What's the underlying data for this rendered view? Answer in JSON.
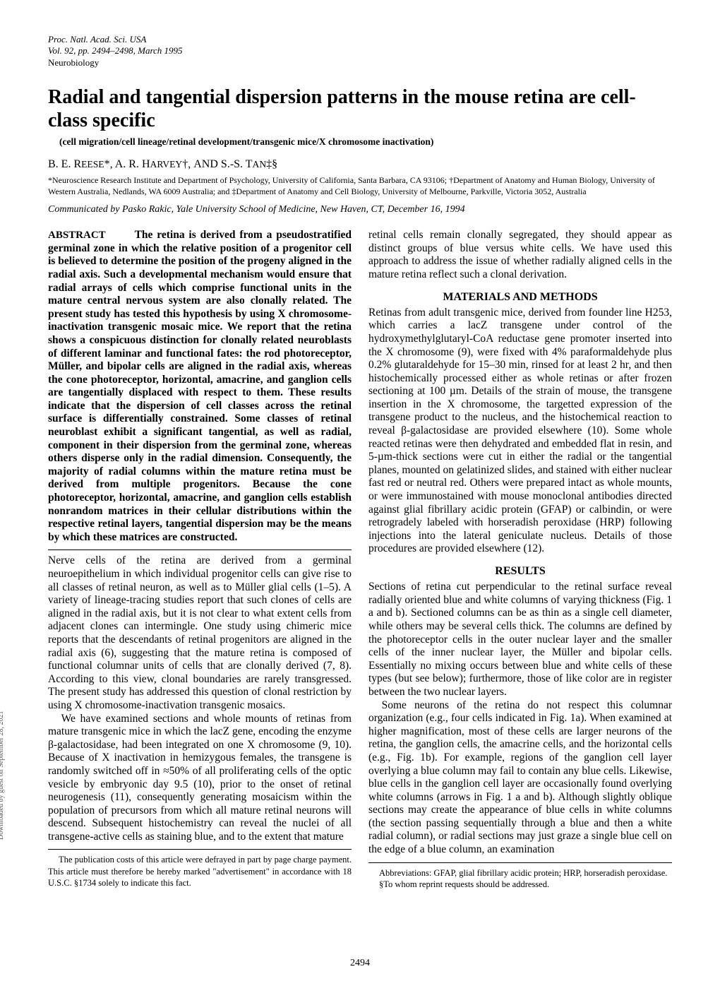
{
  "journal": {
    "line1": "Proc. Natl. Acad. Sci. USA",
    "line2": "Vol. 92, pp. 2494–2498, March 1995",
    "line3": "Neurobiology"
  },
  "title": "Radial and tangential dispersion patterns in the mouse retina are cell-class specific",
  "subtitle": "(cell migration/cell lineage/retinal development/transgenic mice/X chromosome inactivation)",
  "authors_html": "B. E. Reese*, A. R. Harvey†, and S.-S. Tan‡§",
  "affiliations": "*Neuroscience Research Institute and Department of Psychology, University of California, Santa Barbara, CA 93106; †Department of Anatomy and Human Biology, University of Western Australia, Nedlands, WA 6009 Australia; and ‡Department of Anatomy and Cell Biology, University of Melbourne, Parkville, Victoria 3052, Australia",
  "communicated": "Communicated by Pasko Rakic, Yale University School of Medicine, New Haven, CT, December 16, 1994",
  "abstract_label": "ABSTRACT",
  "abstract": "The retina is derived from a pseudostratified germinal zone in which the relative position of a progenitor cell is believed to determine the position of the progeny aligned in the radial axis. Such a developmental mechanism would ensure that radial arrays of cells which comprise functional units in the mature central nervous system are also clonally related. The present study has tested this hypothesis by using X chromosome-inactivation transgenic mosaic mice. We report that the retina shows a conspicuous distinction for clonally related neuroblasts of different laminar and functional fates: the rod photoreceptor, Müller, and bipolar cells are aligned in the radial axis, whereas the cone photoreceptor, horizontal, amacrine, and ganglion cells are tangentially displaced with respect to them. These results indicate that the dispersion of cell classes across the retinal surface is differentially constrained. Some classes of retinal neuroblast exhibit a significant tangential, as well as radial, component in their dispersion from the germinal zone, whereas others disperse only in the radial dimension. Consequently, the majority of radial columns within the mature retina must be derived from multiple progenitors. Because the cone photoreceptor, horizontal, amacrine, and ganglion cells establish nonrandom matrices in their cellular distributions within the respective retinal layers, tangential dispersion may be the means by which these matrices are constructed.",
  "body": {
    "p1": "Nerve cells of the retina are derived from a germinal neuroepithelium in which individual progenitor cells can give rise to all classes of retinal neuron, as well as to Müller glial cells (1–5). A variety of lineage-tracing studies report that such clones of cells are aligned in the radial axis, but it is not clear to what extent cells from adjacent clones can intermingle. One study using chimeric mice reports that the descendants of retinal progenitors are aligned in the radial axis (6), suggesting that the mature retina is composed of functional columnar units of cells that are clonally derived (7, 8). According to this view, clonal boundaries are rarely transgressed. The present study has addressed this question of clonal restriction by using X chromosome-inactivation transgenic mosaics.",
    "p2": "We have examined sections and whole mounts of retinas from mature transgenic mice in which the lacZ gene, encoding the enzyme β-galactosidase, had been integrated on one X chromosome (9, 10). Because of X inactivation in hemizygous females, the transgene is randomly switched off in ≈50% of all proliferating cells of the optic vesicle by embryonic day 9.5 (10), prior to the onset of retinal neurogenesis (11), consequently generating mosaicism within the population of precursors from which all mature retinal neurons will descend. Subsequent histochemistry can reveal the nuclei of all transgene-active cells as staining blue, and to the extent that mature",
    "p3": "retinal cells remain clonally segregated, they should appear as distinct groups of blue versus white cells. We have used this approach to address the issue of whether radially aligned cells in the mature retina reflect such a clonal derivation.",
    "methods_head": "MATERIALS AND METHODS",
    "p4": "Retinas from adult transgenic mice, derived from founder line H253, which carries a lacZ transgene under control of the hydroxymethylglutaryl-CoA reductase gene promoter inserted into the X chromosome (9), were fixed with 4% paraformaldehyde plus 0.2% glutaraldehyde for 15–30 min, rinsed for at least 2 hr, and then histochemically processed either as whole retinas or after frozen sectioning at 100 µm. Details of the strain of mouse, the transgene insertion in the X chromosome, the targetted expression of the transgene product to the nucleus, and the histochemical reaction to reveal β-galactosidase are provided elsewhere (10). Some whole reacted retinas were then dehydrated and embedded flat in resin, and 5-µm-thick sections were cut in either the radial or the tangential planes, mounted on gelatinized slides, and stained with either nuclear fast red or neutral red. Others were prepared intact as whole mounts, or were immunostained with mouse monoclonal antibodies directed against glial fibrillary acidic protein (GFAP) or calbindin, or were retrogradely labeled with horseradish peroxidase (HRP) following injections into the lateral geniculate nucleus. Details of those procedures are provided elsewhere (12).",
    "results_head": "RESULTS",
    "p5": "Sections of retina cut perpendicular to the retinal surface reveal radially oriented blue and white columns of varying thickness (Fig. 1 a and b). Sectioned columns can be as thin as a single cell diameter, while others may be several cells thick. The columns are defined by the photoreceptor cells in the outer nuclear layer and the smaller cells of the inner nuclear layer, the Müller and bipolar cells. Essentially no mixing occurs between blue and white cells of these types (but see below); furthermore, those of like color are in register between the two nuclear layers.",
    "p6": "Some neurons of the retina do not respect this columnar organization (e.g., four cells indicated in Fig. 1a). When examined at higher magnification, most of these cells are larger neurons of the retina, the ganglion cells, the amacrine cells, and the horizontal cells (e.g., Fig. 1b). For example, regions of the ganglion cell layer overlying a blue column may fail to contain any blue cells. Likewise, blue cells in the ganglion cell layer are occasionally found overlying white columns (arrows in Fig. 1 a and b). Although slightly oblique sections may create the appearance of blue cells in white columns (the section passing sequentially through a blue and then a white radial column), or radial sections may just graze a single blue cell on the edge of a blue column, an examination"
  },
  "footnotes": {
    "left": "The publication costs of this article were defrayed in part by page charge payment. This article must therefore be hereby marked \"advertisement\" in accordance with 18 U.S.C. §1734 solely to indicate this fact.",
    "right1": "Abbreviations: GFAP, glial fibrillary acidic protein; HRP, horseradish peroxidase.",
    "right2": "§To whom reprint requests should be addressed."
  },
  "page_number": "2494",
  "side_note": "Downloaded by guest on September 28, 2021"
}
